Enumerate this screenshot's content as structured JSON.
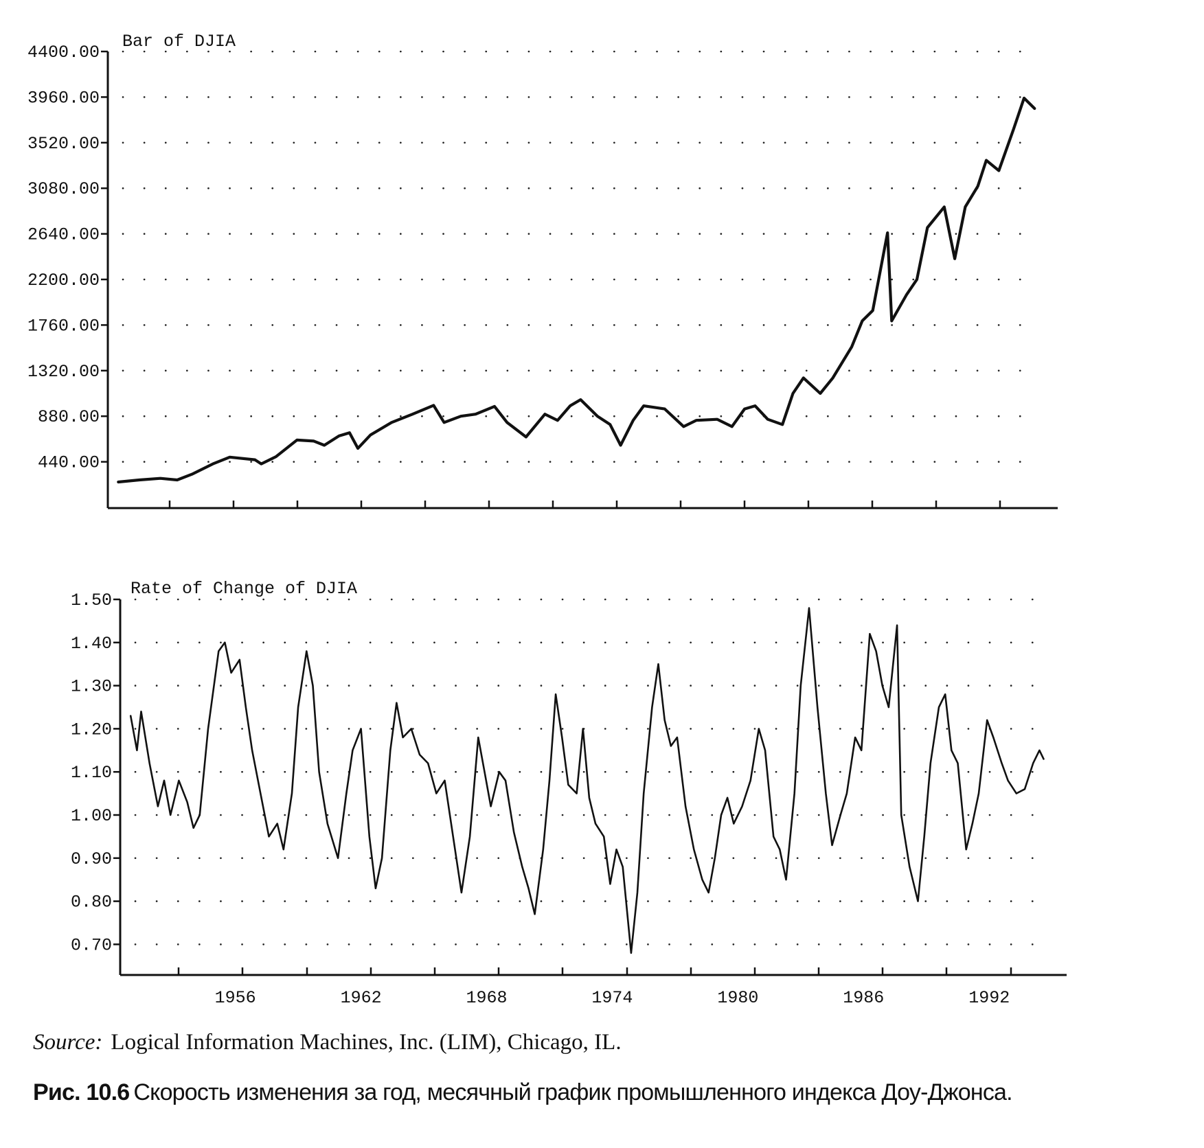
{
  "chart_data": [
    {
      "type": "line",
      "title": "Bar of DJIA",
      "xlabel": "",
      "ylabel": "",
      "ylim": [
        0,
        4400
      ],
      "y_ticks": [
        "4400.00",
        "3960.00",
        "3520.00",
        "3080.00",
        "2640.00",
        "2200.00",
        "1760.00",
        "1320.00",
        "880.00",
        "440.00"
      ],
      "y_tick_values": [
        4400,
        3960,
        3520,
        3080,
        2640,
        2200,
        1760,
        1320,
        880,
        440
      ],
      "x_tick_labels": [],
      "xlim": [
        1950.5,
        1995.7
      ],
      "grid": "dotted",
      "series": [
        {
          "values": [
            [
              1951.0,
              245
            ],
            [
              1952.0,
              265
            ],
            [
              1953.0,
              280
            ],
            [
              1953.8,
              265
            ],
            [
              1954.5,
              320
            ],
            [
              1955.5,
              420
            ],
            [
              1956.3,
              485
            ],
            [
              1957.5,
              460
            ],
            [
              1957.8,
              420
            ],
            [
              1958.5,
              490
            ],
            [
              1959.5,
              650
            ],
            [
              1960.3,
              640
            ],
            [
              1960.8,
              600
            ],
            [
              1961.5,
              690
            ],
            [
              1962.0,
              720
            ],
            [
              1962.4,
              570
            ],
            [
              1963.0,
              700
            ],
            [
              1964.0,
              820
            ],
            [
              1965.0,
              900
            ],
            [
              1966.0,
              985
            ],
            [
              1966.5,
              820
            ],
            [
              1967.3,
              880
            ],
            [
              1968.0,
              900
            ],
            [
              1968.9,
              975
            ],
            [
              1969.5,
              820
            ],
            [
              1970.4,
              680
            ],
            [
              1971.3,
              900
            ],
            [
              1971.9,
              840
            ],
            [
              1972.5,
              980
            ],
            [
              1973.0,
              1040
            ],
            [
              1973.8,
              880
            ],
            [
              1974.4,
              800
            ],
            [
              1974.9,
              600
            ],
            [
              1975.5,
              840
            ],
            [
              1976.0,
              980
            ],
            [
              1977.0,
              950
            ],
            [
              1977.9,
              780
            ],
            [
              1978.5,
              840
            ],
            [
              1979.5,
              850
            ],
            [
              1980.2,
              780
            ],
            [
              1980.8,
              950
            ],
            [
              1981.3,
              980
            ],
            [
              1981.9,
              850
            ],
            [
              1982.6,
              800
            ],
            [
              1983.1,
              1100
            ],
            [
              1983.6,
              1250
            ],
            [
              1984.4,
              1100
            ],
            [
              1985.0,
              1250
            ],
            [
              1985.9,
              1550
            ],
            [
              1986.4,
              1800
            ],
            [
              1986.9,
              1900
            ],
            [
              1987.6,
              2650
            ],
            [
              1987.8,
              1800
            ],
            [
              1988.5,
              2050
            ],
            [
              1989.0,
              2200
            ],
            [
              1989.5,
              2700
            ],
            [
              1990.3,
              2900
            ],
            [
              1990.8,
              2400
            ],
            [
              1991.3,
              2900
            ],
            [
              1991.9,
              3100
            ],
            [
              1992.3,
              3350
            ],
            [
              1992.9,
              3250
            ],
            [
              1993.6,
              3650
            ],
            [
              1994.1,
              3950
            ],
            [
              1994.6,
              3850
            ]
          ]
        }
      ]
    },
    {
      "type": "line",
      "title": "Rate of Change of DJIA",
      "xlabel": "",
      "ylabel": "",
      "ylim": [
        0.615,
        1.5
      ],
      "y_ticks": [
        "1.50",
        "1.40",
        "1.30",
        "1.20",
        "1.10",
        "1.00",
        "0.90",
        "0.80",
        "0.70"
      ],
      "y_tick_values": [
        1.5,
        1.4,
        1.3,
        1.2,
        1.1,
        1.0,
        0.9,
        0.8,
        0.7
      ],
      "x_tick_labels": [
        "1956",
        "1962",
        "1968",
        "1974",
        "1980",
        "1986",
        "1992"
      ],
      "x_tick_values": [
        1956,
        1962,
        1968,
        1974,
        1980,
        1986,
        1992
      ],
      "xlim": [
        1950.5,
        1995.7
      ],
      "grid": "dotted",
      "series": [
        {
          "values": [
            [
              1951.0,
              1.23
            ],
            [
              1951.3,
              1.15
            ],
            [
              1951.5,
              1.24
            ],
            [
              1951.9,
              1.12
            ],
            [
              1952.3,
              1.02
            ],
            [
              1952.6,
              1.08
            ],
            [
              1952.9,
              1.0
            ],
            [
              1953.3,
              1.08
            ],
            [
              1953.7,
              1.03
            ],
            [
              1954.0,
              0.97
            ],
            [
              1954.3,
              1.0
            ],
            [
              1954.7,
              1.2
            ],
            [
              1955.2,
              1.38
            ],
            [
              1955.5,
              1.4
            ],
            [
              1955.8,
              1.33
            ],
            [
              1956.2,
              1.36
            ],
            [
              1956.5,
              1.25
            ],
            [
              1956.8,
              1.15
            ],
            [
              1957.2,
              1.05
            ],
            [
              1957.6,
              0.95
            ],
            [
              1958.0,
              0.98
            ],
            [
              1958.3,
              0.92
            ],
            [
              1958.7,
              1.05
            ],
            [
              1959.0,
              1.25
            ],
            [
              1959.4,
              1.38
            ],
            [
              1959.7,
              1.3
            ],
            [
              1960.0,
              1.1
            ],
            [
              1960.4,
              0.98
            ],
            [
              1960.9,
              0.9
            ],
            [
              1961.3,
              1.05
            ],
            [
              1961.6,
              1.15
            ],
            [
              1962.0,
              1.2
            ],
            [
              1962.4,
              0.95
            ],
            [
              1962.7,
              0.83
            ],
            [
              1963.0,
              0.9
            ],
            [
              1963.4,
              1.15
            ],
            [
              1963.7,
              1.26
            ],
            [
              1964.0,
              1.18
            ],
            [
              1964.4,
              1.2
            ],
            [
              1964.8,
              1.14
            ],
            [
              1965.2,
              1.12
            ],
            [
              1965.6,
              1.05
            ],
            [
              1966.0,
              1.08
            ],
            [
              1966.4,
              0.95
            ],
            [
              1966.8,
              0.82
            ],
            [
              1967.2,
              0.95
            ],
            [
              1967.6,
              1.18
            ],
            [
              1967.9,
              1.1
            ],
            [
              1968.2,
              1.02
            ],
            [
              1968.6,
              1.1
            ],
            [
              1968.9,
              1.08
            ],
            [
              1969.3,
              0.96
            ],
            [
              1969.7,
              0.88
            ],
            [
              1970.0,
              0.83
            ],
            [
              1970.3,
              0.77
            ],
            [
              1970.7,
              0.92
            ],
            [
              1971.0,
              1.08
            ],
            [
              1971.3,
              1.28
            ],
            [
              1971.6,
              1.18
            ],
            [
              1971.9,
              1.07
            ],
            [
              1972.3,
              1.05
            ],
            [
              1972.6,
              1.2
            ],
            [
              1972.9,
              1.04
            ],
            [
              1973.2,
              0.98
            ],
            [
              1973.6,
              0.95
            ],
            [
              1973.9,
              0.84
            ],
            [
              1974.2,
              0.92
            ],
            [
              1974.5,
              0.88
            ],
            [
              1974.9,
              0.68
            ],
            [
              1975.2,
              0.82
            ],
            [
              1975.5,
              1.05
            ],
            [
              1975.9,
              1.25
            ],
            [
              1976.2,
              1.35
            ],
            [
              1976.5,
              1.22
            ],
            [
              1976.8,
              1.16
            ],
            [
              1977.1,
              1.18
            ],
            [
              1977.5,
              1.02
            ],
            [
              1977.9,
              0.92
            ],
            [
              1978.3,
              0.85
            ],
            [
              1978.6,
              0.82
            ],
            [
              1978.9,
              0.9
            ],
            [
              1979.2,
              1.0
            ],
            [
              1979.5,
              1.04
            ],
            [
              1979.8,
              0.98
            ],
            [
              1980.2,
              1.02
            ],
            [
              1980.6,
              1.08
            ],
            [
              1981.0,
              1.2
            ],
            [
              1981.3,
              1.15
            ],
            [
              1981.7,
              0.95
            ],
            [
              1982.0,
              0.92
            ],
            [
              1982.3,
              0.85
            ],
            [
              1982.7,
              1.05
            ],
            [
              1983.0,
              1.3
            ],
            [
              1983.4,
              1.48
            ],
            [
              1983.8,
              1.25
            ],
            [
              1984.2,
              1.05
            ],
            [
              1984.5,
              0.93
            ],
            [
              1984.9,
              1.0
            ],
            [
              1985.2,
              1.05
            ],
            [
              1985.6,
              1.18
            ],
            [
              1985.9,
              1.15
            ],
            [
              1986.3,
              1.42
            ],
            [
              1986.6,
              1.38
            ],
            [
              1986.9,
              1.3
            ],
            [
              1987.2,
              1.25
            ],
            [
              1987.6,
              1.44
            ],
            [
              1987.8,
              1.0
            ],
            [
              1988.2,
              0.88
            ],
            [
              1988.6,
              0.8
            ],
            [
              1988.9,
              0.95
            ],
            [
              1989.2,
              1.12
            ],
            [
              1989.6,
              1.25
            ],
            [
              1989.9,
              1.28
            ],
            [
              1990.2,
              1.15
            ],
            [
              1990.5,
              1.12
            ],
            [
              1990.9,
              0.92
            ],
            [
              1991.2,
              0.98
            ],
            [
              1991.5,
              1.05
            ],
            [
              1991.9,
              1.22
            ],
            [
              1992.2,
              1.18
            ],
            [
              1992.6,
              1.12
            ],
            [
              1992.9,
              1.08
            ],
            [
              1993.3,
              1.05
            ],
            [
              1993.7,
              1.06
            ],
            [
              1994.1,
              1.12
            ],
            [
              1994.4,
              1.15
            ],
            [
              1994.6,
              1.13
            ]
          ]
        }
      ]
    }
  ],
  "source": {
    "label": "Source:",
    "text": "Logical Information Machines, Inc. (LIM), Chicago, IL."
  },
  "caption": {
    "label": "Рис. 10.6",
    "text": "Скорость изменения за год, месячный график промышленного индекса Доу-Джонса."
  }
}
